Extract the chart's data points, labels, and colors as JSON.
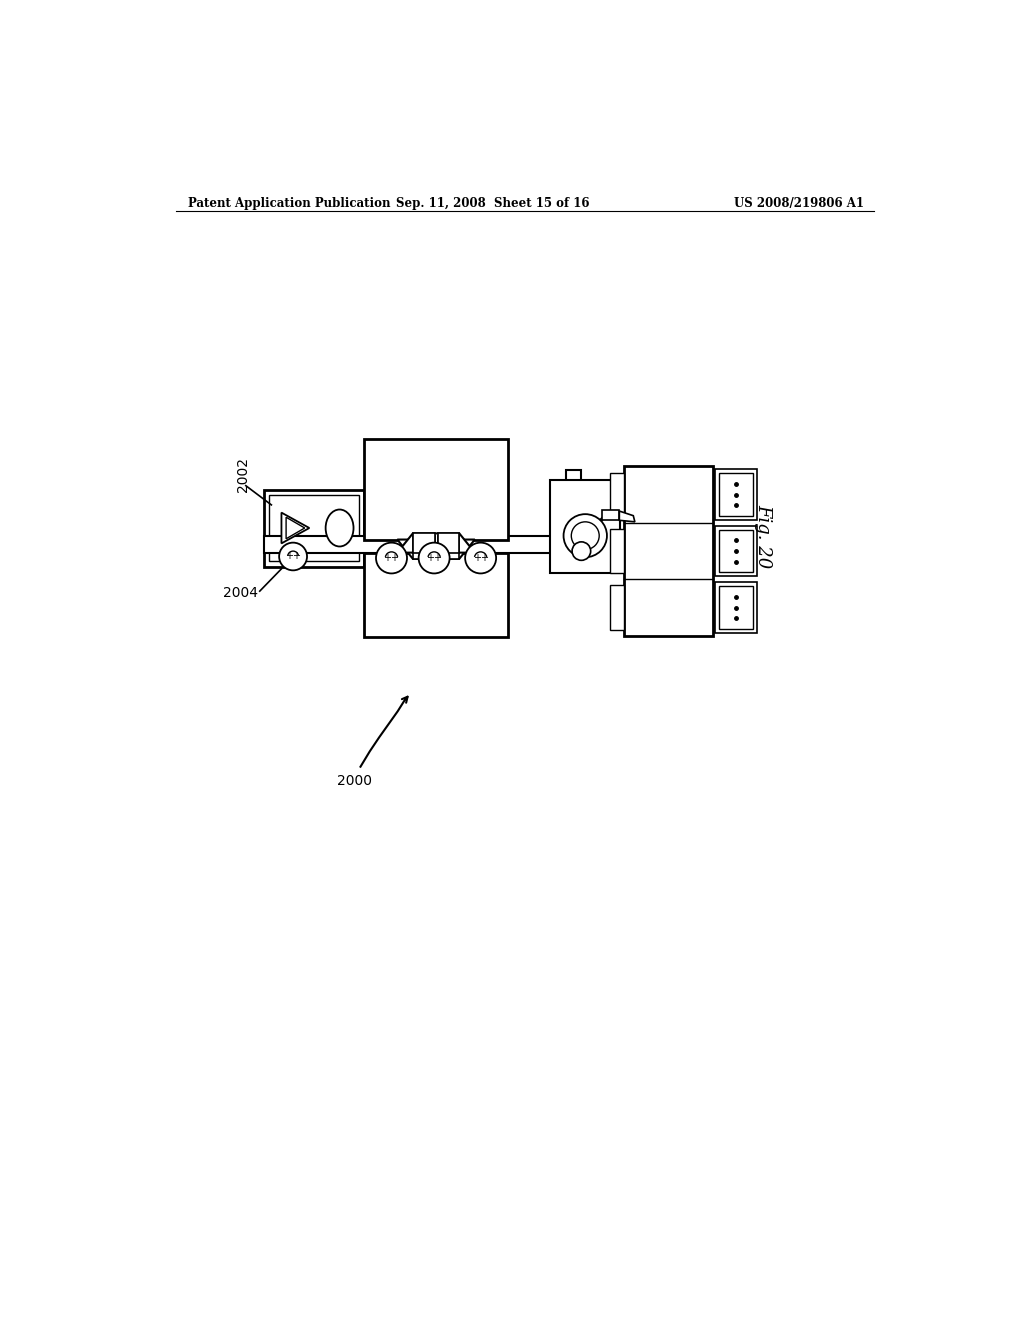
{
  "title_left": "Patent Application Publication",
  "title_center": "Sep. 11, 2008  Sheet 15 of 16",
  "title_right": "US 2008/219806 A1",
  "fig_label": "Fig. 20",
  "label_2002": "2002",
  "label_2004": "2004",
  "label_2000": "2000",
  "bg_color": "#ffffff",
  "line_color": "#000000"
}
